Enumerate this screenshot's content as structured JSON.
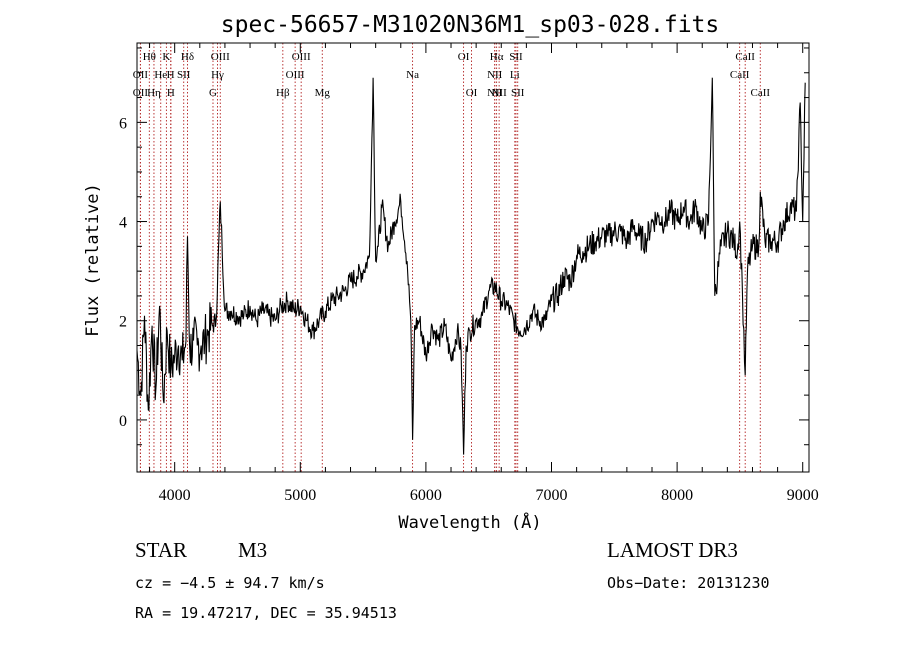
{
  "chart_data": {
    "type": "line",
    "title": "spec-56657-M31020N36M1_sp03-028.fits",
    "xlabel": "Wavelength (Å)",
    "ylabel": "Flux (relative)",
    "xlim": [
      3700,
      9050
    ],
    "ylim": [
      -1.05,
      7.6
    ],
    "xticks": [
      4000,
      5000,
      6000,
      7000,
      8000,
      9000
    ],
    "yticks": [
      0,
      2,
      4,
      6
    ],
    "xtick_labels": [
      "4000",
      "5000",
      "6000",
      "7000",
      "8000",
      "9000"
    ],
    "ytick_labels": [
      "0",
      "2",
      "4",
      "6"
    ],
    "line_color": "#000000",
    "marker_color": "#b22222",
    "spectral_lines": [
      {
        "label": "OII",
        "wavelength": 3727,
        "row": 2
      },
      {
        "label": "OII",
        "wavelength": 3727,
        "row": 3
      },
      {
        "label": "Hθ",
        "wavelength": 3798,
        "row": 1
      },
      {
        "label": "Hη",
        "wavelength": 3835,
        "row": 3
      },
      {
        "label": "He",
        "wavelength": 3889,
        "row": 2
      },
      {
        "label": "K",
        "wavelength": 3934,
        "row": 1
      },
      {
        "label": "H",
        "wavelength": 3968,
        "row": 2
      },
      {
        "label": "H",
        "wavelength": 3970,
        "row": 3
      },
      {
        "label": "SII",
        "wavelength": 4072,
        "row": 2
      },
      {
        "label": "Hδ",
        "wavelength": 4102,
        "row": 1
      },
      {
        "label": "G",
        "wavelength": 4305,
        "row": 3
      },
      {
        "label": "Hγ",
        "wavelength": 4341,
        "row": 2
      },
      {
        "label": "OIII",
        "wavelength": 4363,
        "row": 1
      },
      {
        "label": "Hβ",
        "wavelength": 4861,
        "row": 3
      },
      {
        "label": "OIII",
        "wavelength": 4959,
        "row": 2
      },
      {
        "label": "OIII",
        "wavelength": 5007,
        "row": 1
      },
      {
        "label": "Mg",
        "wavelength": 5175,
        "row": 3
      },
      {
        "label": "Na",
        "wavelength": 5894,
        "row": 2
      },
      {
        "label": "OI",
        "wavelength": 6300,
        "row": 1
      },
      {
        "label": "OI",
        "wavelength": 6363,
        "row": 3
      },
      {
        "label": "NII",
        "wavelength": 6548,
        "row": 2
      },
      {
        "label": "NII",
        "wavelength": 6548,
        "row": 3
      },
      {
        "label": "Hα",
        "wavelength": 6563,
        "row": 1
      },
      {
        "label": "NII",
        "wavelength": 6583,
        "row": 3
      },
      {
        "label": "SII",
        "wavelength": 6717,
        "row": 1
      },
      {
        "label": "Li",
        "wavelength": 6708,
        "row": 2
      },
      {
        "label": "SII",
        "wavelength": 6731,
        "row": 3
      },
      {
        "label": "CaII",
        "wavelength": 8498,
        "row": 2
      },
      {
        "label": "CaII",
        "wavelength": 8542,
        "row": 1
      },
      {
        "label": "CaII",
        "wavelength": 8662,
        "row": 3
      }
    ],
    "series": [
      {
        "name": "flux",
        "x": [
          3700,
          3730,
          3760,
          3790,
          3820,
          3850,
          3880,
          3910,
          3940,
          3970,
          4000,
          4030,
          4060,
          4090,
          4102,
          4120,
          4150,
          4180,
          4210,
          4240,
          4270,
          4300,
          4330,
          4363,
          4400,
          4450,
          4500,
          4550,
          4600,
          4650,
          4700,
          4750,
          4800,
          4850,
          4900,
          4950,
          5000,
          5050,
          5100,
          5150,
          5200,
          5250,
          5300,
          5350,
          5400,
          5450,
          5500,
          5550,
          5580,
          5600,
          5620,
          5650,
          5700,
          5750,
          5800,
          5850,
          5880,
          5894,
          5910,
          5950,
          6000,
          6050,
          6100,
          6150,
          6200,
          6250,
          6280,
          6300,
          6320,
          6350,
          6400,
          6450,
          6500,
          6550,
          6600,
          6650,
          6700,
          6750,
          6800,
          6850,
          6900,
          6950,
          7000,
          7050,
          7100,
          7150,
          7200,
          7250,
          7300,
          7350,
          7400,
          7450,
          7500,
          7550,
          7600,
          7650,
          7700,
          7750,
          7800,
          7850,
          7900,
          7950,
          8000,
          8050,
          8100,
          8150,
          8200,
          8250,
          8280,
          8300,
          8350,
          8400,
          8450,
          8480,
          8498,
          8520,
          8542,
          8560,
          8600,
          8650,
          8662,
          8700,
          8750,
          8800,
          8850,
          8900,
          8950,
          8980,
          9000,
          9020
        ],
        "values": [
          1.4,
          0.5,
          2.1,
          0.2,
          1.9,
          0.6,
          2.3,
          0.4,
          1.8,
          1.0,
          1.3,
          1.5,
          1.2,
          1.6,
          3.7,
          1.4,
          1.6,
          1.5,
          1.5,
          1.6,
          1.8,
          1.9,
          2.0,
          4.4,
          2.2,
          2.2,
          2.1,
          2.1,
          2.3,
          2.0,
          2.2,
          2.1,
          2.0,
          2.3,
          2.4,
          2.2,
          2.3,
          2.0,
          1.8,
          2.0,
          2.2,
          2.4,
          2.5,
          2.6,
          2.8,
          2.9,
          3.0,
          3.3,
          6.9,
          3.2,
          3.5,
          4.3,
          3.5,
          4.0,
          4.4,
          3.2,
          2.0,
          -0.4,
          1.9,
          2.0,
          1.3,
          1.9,
          1.6,
          1.9,
          1.2,
          1.8,
          1.4,
          -0.7,
          1.5,
          1.8,
          2.0,
          2.1,
          2.6,
          2.7,
          2.4,
          2.3,
          2.0,
          1.8,
          1.9,
          2.2,
          2.0,
          2.0,
          2.4,
          2.5,
          2.9,
          2.8,
          3.3,
          3.4,
          3.5,
          3.6,
          3.7,
          3.7,
          3.8,
          3.8,
          3.6,
          3.9,
          3.7,
          3.6,
          4.0,
          4.1,
          4.0,
          4.2,
          4.0,
          4.3,
          4.0,
          4.3,
          3.8,
          4.0,
          6.9,
          2.5,
          3.5,
          3.8,
          3.6,
          3.4,
          4.0,
          2.6,
          0.9,
          3.0,
          3.5,
          3.5,
          4.6,
          3.6,
          3.6,
          3.6,
          4.0,
          4.3,
          4.2,
          6.4,
          4.0,
          6.8
        ]
      }
    ]
  },
  "info": {
    "object_type": "STAR",
    "subclass": "M3",
    "survey": "LAMOST DR3",
    "redshift": "cz = −4.5 ± 94.7 km/s",
    "obs_date": "Obs−Date: 20131230",
    "coords": "RA =  19.47217, DEC =  35.94513"
  }
}
